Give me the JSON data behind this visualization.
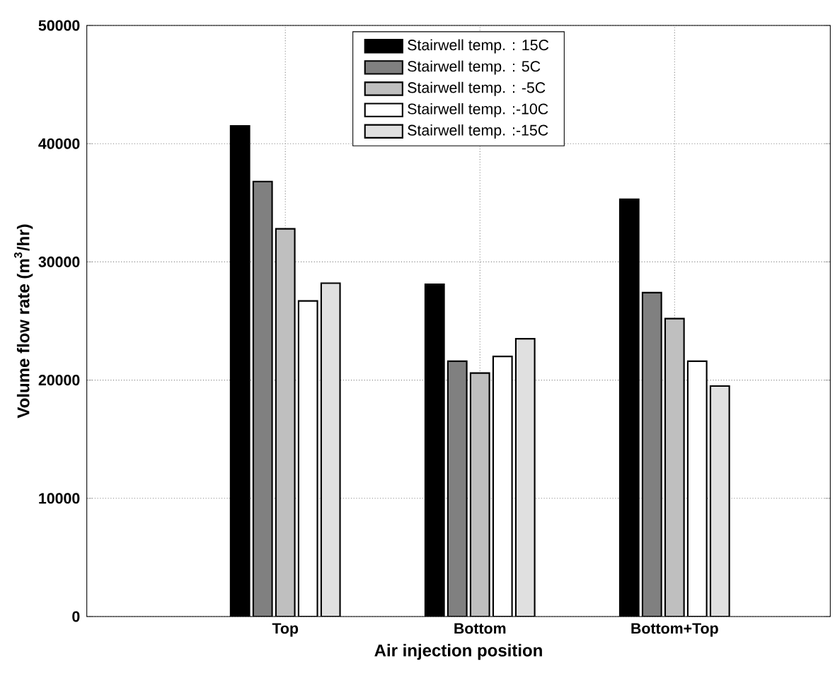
{
  "chart_data": {
    "type": "bar",
    "xlabel": "Air injection position",
    "ylabel": "Volume flow rate (m$^{3}$/hr)",
    "categories": [
      "Top",
      "Bottom",
      "Bottom+Top"
    ],
    "ylim": [
      0,
      50000
    ],
    "yticks": [
      0,
      10000,
      20000,
      30000,
      40000,
      50000
    ],
    "grid": true,
    "legend": "top",
    "series": [
      {
        "name": "Stairwell temp. : 15C",
        "color": "#000000",
        "values": [
          41500,
          28100,
          35300
        ]
      },
      {
        "name": "Stairwell temp. :   5C",
        "color": "#808080",
        "values": [
          36800,
          21600,
          27400
        ]
      },
      {
        "name": "Stairwell temp. :  -5C",
        "color": "#bfbfbf",
        "values": [
          32800,
          20600,
          25200
        ]
      },
      {
        "name": "Stairwell temp. :-10C",
        "color": "#ffffff",
        "values": [
          26700,
          22000,
          21600
        ]
      },
      {
        "name": "Stairwell temp. :-15C",
        "color": "#e0e0e0",
        "values": [
          28200,
          23500,
          19500
        ]
      }
    ]
  }
}
